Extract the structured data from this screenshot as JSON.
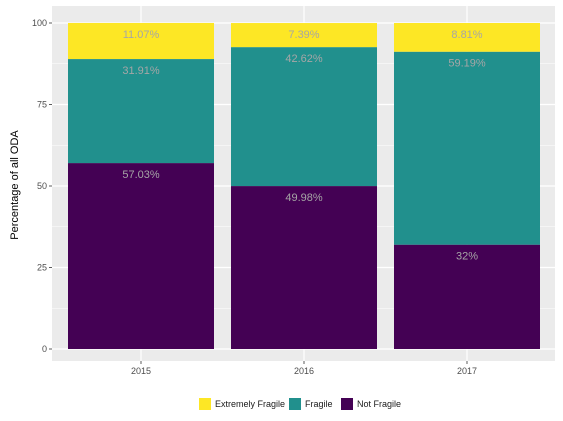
{
  "chart_data": {
    "type": "bar",
    "stacked": true,
    "categories": [
      "2015",
      "2016",
      "2017"
    ],
    "series": [
      {
        "name": "Not Fragile",
        "values": [
          57.03,
          49.98,
          32
        ],
        "labels": [
          "57.03%",
          "49.98%",
          "32%"
        ],
        "color": "#440154"
      },
      {
        "name": "Fragile",
        "values": [
          31.91,
          42.62,
          59.19
        ],
        "labels": [
          "31.91%",
          "42.62%",
          "59.19%"
        ],
        "color": "#21908d"
      },
      {
        "name": "Extremely Fragile",
        "values": [
          11.07,
          7.39,
          8.81
        ],
        "labels": [
          "11.07%",
          "7.39%",
          "8.81%"
        ],
        "color": "#fde725"
      }
    ],
    "legend_order": [
      "Extremely Fragile",
      "Fragile",
      "Not Fragile"
    ],
    "title": "",
    "xlabel": "",
    "ylabel": "Percentage of all ODA",
    "ylim": [
      0,
      100
    ],
    "yticks": [
      0,
      25,
      50,
      75,
      100
    ],
    "grid": true,
    "legend_position": "bottom",
    "panel_background": "#ebebeb",
    "grid_color": "#ffffff"
  }
}
